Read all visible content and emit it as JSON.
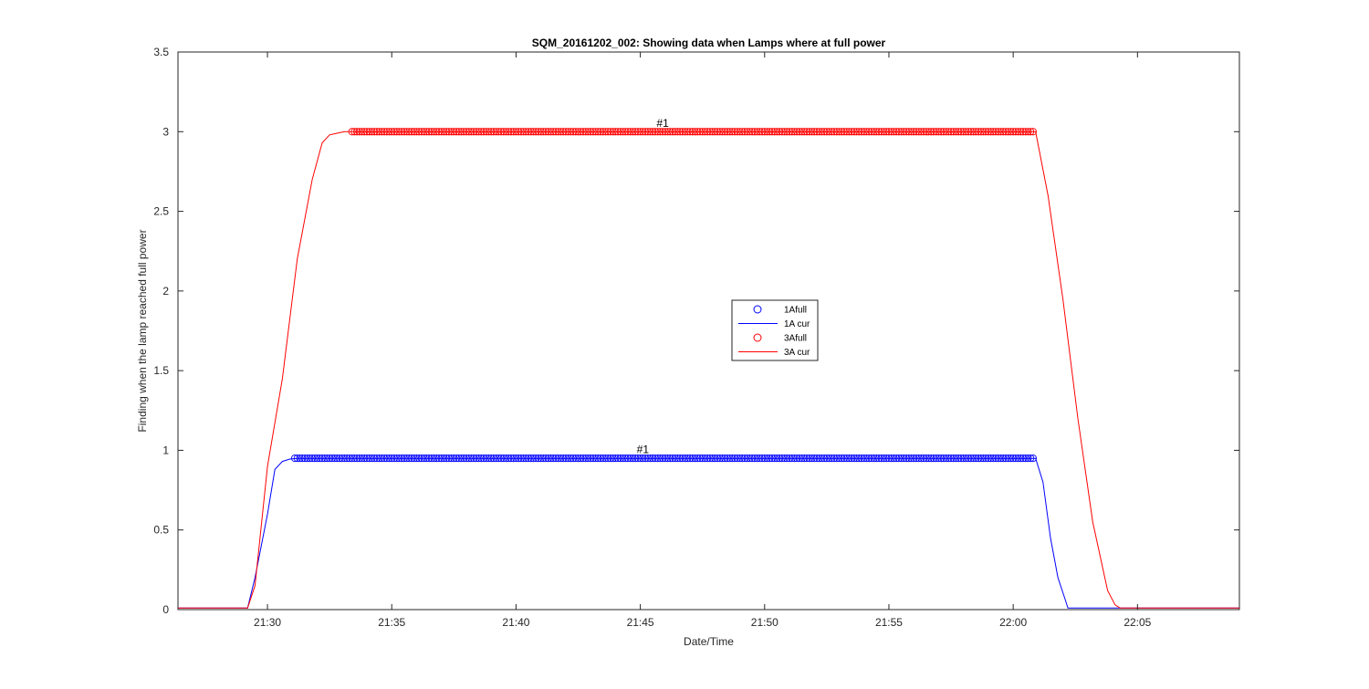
{
  "chart_data": {
    "type": "line",
    "title": "SQM_20161202_002: Showing data when Lamps where at full power",
    "xlabel": "Date/Time",
    "ylabel": "Finding when the lamp reached full power",
    "x_range_minutes": [
      "21:26:24",
      "22:09:06"
    ],
    "xlim": [
      "21:26:24",
      "22:09:06"
    ],
    "ylim": [
      0,
      3.5
    ],
    "x_ticks": [
      "21:30",
      "21:35",
      "21:40",
      "21:45",
      "21:50",
      "21:55",
      "22:00",
      "22:05"
    ],
    "y_ticks": [
      "0",
      "0.5",
      "1",
      "1.5",
      "2",
      "2.5",
      "3",
      "3.5"
    ],
    "grid": false,
    "legend_location": "center",
    "series": [
      {
        "name": "1Afull",
        "kind": "markers",
        "marker": "circle",
        "color": "#0000ff",
        "x_start": "21:31:06",
        "x_end": "22:00:48",
        "y": 0.95
      },
      {
        "name": "1A cur",
        "kind": "line",
        "color": "#0000ff",
        "x": [
          "21:26:24",
          "21:29:12",
          "21:29:30",
          "21:30:00",
          "21:30:18",
          "21:30:36",
          "21:30:54",
          "21:31:12",
          "22:00:54",
          "22:01:12",
          "22:01:30",
          "22:01:48",
          "22:02:06",
          "22:02:12",
          "22:04:00",
          "22:09:06"
        ],
        "y": [
          0.01,
          0.01,
          0.2,
          0.6,
          0.88,
          0.93,
          0.945,
          0.95,
          0.95,
          0.8,
          0.45,
          0.2,
          0.06,
          0.01,
          0.01,
          0.01
        ]
      },
      {
        "name": "3Afull",
        "kind": "markers",
        "marker": "circle",
        "color": "#ff0000",
        "x_start": "21:33:24",
        "x_end": "22:00:48",
        "y": 3.0
      },
      {
        "name": "3A cur",
        "kind": "line",
        "color": "#ff0000",
        "x": [
          "21:26:24",
          "21:29:12",
          "21:29:30",
          "21:30:00",
          "21:30:36",
          "21:31:12",
          "21:31:48",
          "21:32:12",
          "21:32:30",
          "21:32:48",
          "21:33:06",
          "21:33:24",
          "22:00:54",
          "22:01:24",
          "22:02:00",
          "22:02:36",
          "22:03:12",
          "22:03:48",
          "22:04:06",
          "22:04:18",
          "22:09:06"
        ],
        "y": [
          0.01,
          0.01,
          0.15,
          0.9,
          1.45,
          2.2,
          2.7,
          2.93,
          2.98,
          2.99,
          3.0,
          3.0,
          3.0,
          2.6,
          1.95,
          1.2,
          0.55,
          0.12,
          0.03,
          0.01,
          0.01
        ]
      }
    ],
    "annotations": [
      {
        "text": "#1",
        "x": "21:45:54",
        "y": 3.02
      },
      {
        "text": "#1",
        "x": "21:45:06",
        "y": 0.97
      }
    ]
  }
}
